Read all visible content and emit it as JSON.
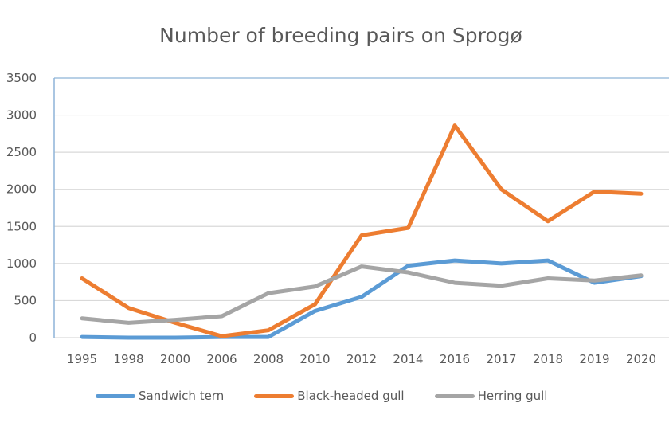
{
  "chart_data": {
    "type": "line",
    "title": "Number of breeding pairs on Sprogø",
    "xlabel": "",
    "ylabel": "",
    "categories": [
      "1995",
      "1998",
      "2000",
      "2006",
      "2008",
      "2010",
      "2012",
      "2014",
      "2016",
      "2017",
      "2018",
      "2019",
      "2020"
    ],
    "ylim": [
      0,
      3500
    ],
    "yticks": [
      0,
      500,
      1000,
      1500,
      2000,
      2500,
      3000,
      3500
    ],
    "grid": true,
    "legend": "bottom",
    "series": [
      {
        "name": "Sandwich tern",
        "color": "#5b9bd5",
        "values": [
          10,
          0,
          0,
          10,
          10,
          360,
          550,
          970,
          1040,
          1000,
          1040,
          740,
          830
        ]
      },
      {
        "name": "Black-headed gull",
        "color": "#ed7d31",
        "values": [
          800,
          400,
          200,
          20,
          100,
          450,
          1380,
          1480,
          2860,
          2000,
          1570,
          1970,
          1940
        ]
      },
      {
        "name": "Herring gull",
        "color": "#a5a5a5",
        "values": [
          260,
          200,
          240,
          290,
          600,
          690,
          960,
          880,
          740,
          700,
          800,
          770,
          840
        ]
      }
    ]
  }
}
